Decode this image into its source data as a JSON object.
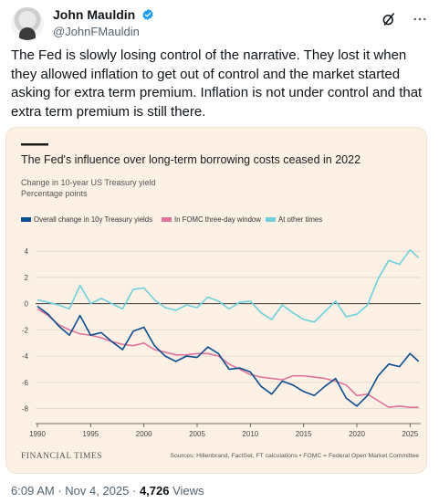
{
  "author": {
    "display_name": "John Mauldin",
    "handle": "@JohnFMauldin"
  },
  "tweet": {
    "text": "The Fed is slowly losing control of the narrative. They lost it when they allowed inflation to get out of control and the market started asking for extra term premium. Inflation is not under control and that extra term premium is still there."
  },
  "meta": {
    "time": "6:09 AM",
    "date": "Nov 4, 2025",
    "views_count": "4,726",
    "views_label": "Views"
  },
  "icons": [
    "verified-icon",
    "grok-icon",
    "more-icon"
  ],
  "colors": {
    "verified": "#1d9bf0",
    "card_bg": "#fdf1e5",
    "overall": "#0d4c8f",
    "fomc": "#e0749a",
    "other": "#6fd0dc"
  },
  "chart_data": {
    "type": "line",
    "title": "The Fed's influence over long-term borrowing costs ceased in 2022",
    "subtitle_line1": "Change in 10-year US Treasury yield",
    "subtitle_line2": "Percentage points",
    "legend": [
      {
        "label": "Overall change in 10y Treasury yields",
        "color": "#0d4c8f"
      },
      {
        "label": "In FOMC three-day window",
        "color": "#e0749a"
      },
      {
        "label": "At other times",
        "color": "#6fd0dc"
      }
    ],
    "x_ticks": [
      "1990",
      "1995",
      "2000",
      "2005",
      "2010",
      "2015",
      "2020",
      "2025"
    ],
    "y_ticks": [
      "4",
      "2",
      "0",
      "-2",
      "-4",
      "-6",
      "-8"
    ],
    "xlim": [
      1990,
      2026
    ],
    "ylim": [
      -9,
      4.5
    ],
    "grid": true,
    "source_logo": "FINANCIAL TIMES",
    "source": "Sources: Hillenbrand, FactSet, FT calculations • FOMC = Federal Open Market Committee",
    "x": [
      1990,
      1991,
      1992,
      1993,
      1994,
      1995,
      1996,
      1997,
      1998,
      1999,
      2000,
      2001,
      2002,
      2003,
      2004,
      2005,
      2006,
      2007,
      2008,
      2009,
      2010,
      2011,
      2012,
      2013,
      2014,
      2015,
      2016,
      2017,
      2018,
      2019,
      2020,
      2021,
      2022,
      2023,
      2024,
      2025,
      2025.8
    ],
    "series": [
      {
        "name": "Overall change in 10y Treasury yields",
        "values": [
          -0.2,
          -0.8,
          -1.7,
          -2.4,
          -0.9,
          -2.4,
          -2.2,
          -2.9,
          -3.5,
          -2.1,
          -1.8,
          -3.2,
          -4.0,
          -4.4,
          -4.0,
          -4.1,
          -3.3,
          -3.8,
          -5.0,
          -4.9,
          -5.2,
          -6.3,
          -6.9,
          -5.9,
          -6.2,
          -6.7,
          -7.0,
          -6.3,
          -5.7,
          -7.2,
          -7.8,
          -7.0,
          -5.5,
          -4.6,
          -4.8,
          -3.8,
          -4.4
        ]
      },
      {
        "name": "In FOMC three-day window",
        "values": [
          -0.4,
          -0.9,
          -1.6,
          -2.0,
          -2.3,
          -2.4,
          -2.6,
          -2.9,
          -3.1,
          -3.2,
          -3.0,
          -3.5,
          -3.7,
          -3.9,
          -3.9,
          -3.8,
          -3.8,
          -4.0,
          -4.6,
          -5.0,
          -5.4,
          -5.6,
          -5.7,
          -5.8,
          -5.5,
          -5.5,
          -5.6,
          -5.7,
          -5.9,
          -6.2,
          -7.0,
          -6.9,
          -7.4,
          -7.9,
          -7.8,
          -7.9,
          -7.9
        ]
      },
      {
        "name": "At other times",
        "values": [
          0.3,
          0.1,
          -0.1,
          -0.4,
          1.4,
          0.0,
          0.4,
          0.0,
          -0.4,
          1.1,
          1.2,
          0.3,
          -0.3,
          -0.5,
          -0.1,
          -0.3,
          0.5,
          0.2,
          -0.4,
          0.1,
          0.2,
          -0.7,
          -1.2,
          -0.1,
          -0.7,
          -1.2,
          -1.4,
          -0.6,
          0.2,
          -1.0,
          -0.8,
          -0.1,
          1.9,
          3.3,
          3.0,
          4.1,
          3.5
        ]
      }
    ]
  }
}
